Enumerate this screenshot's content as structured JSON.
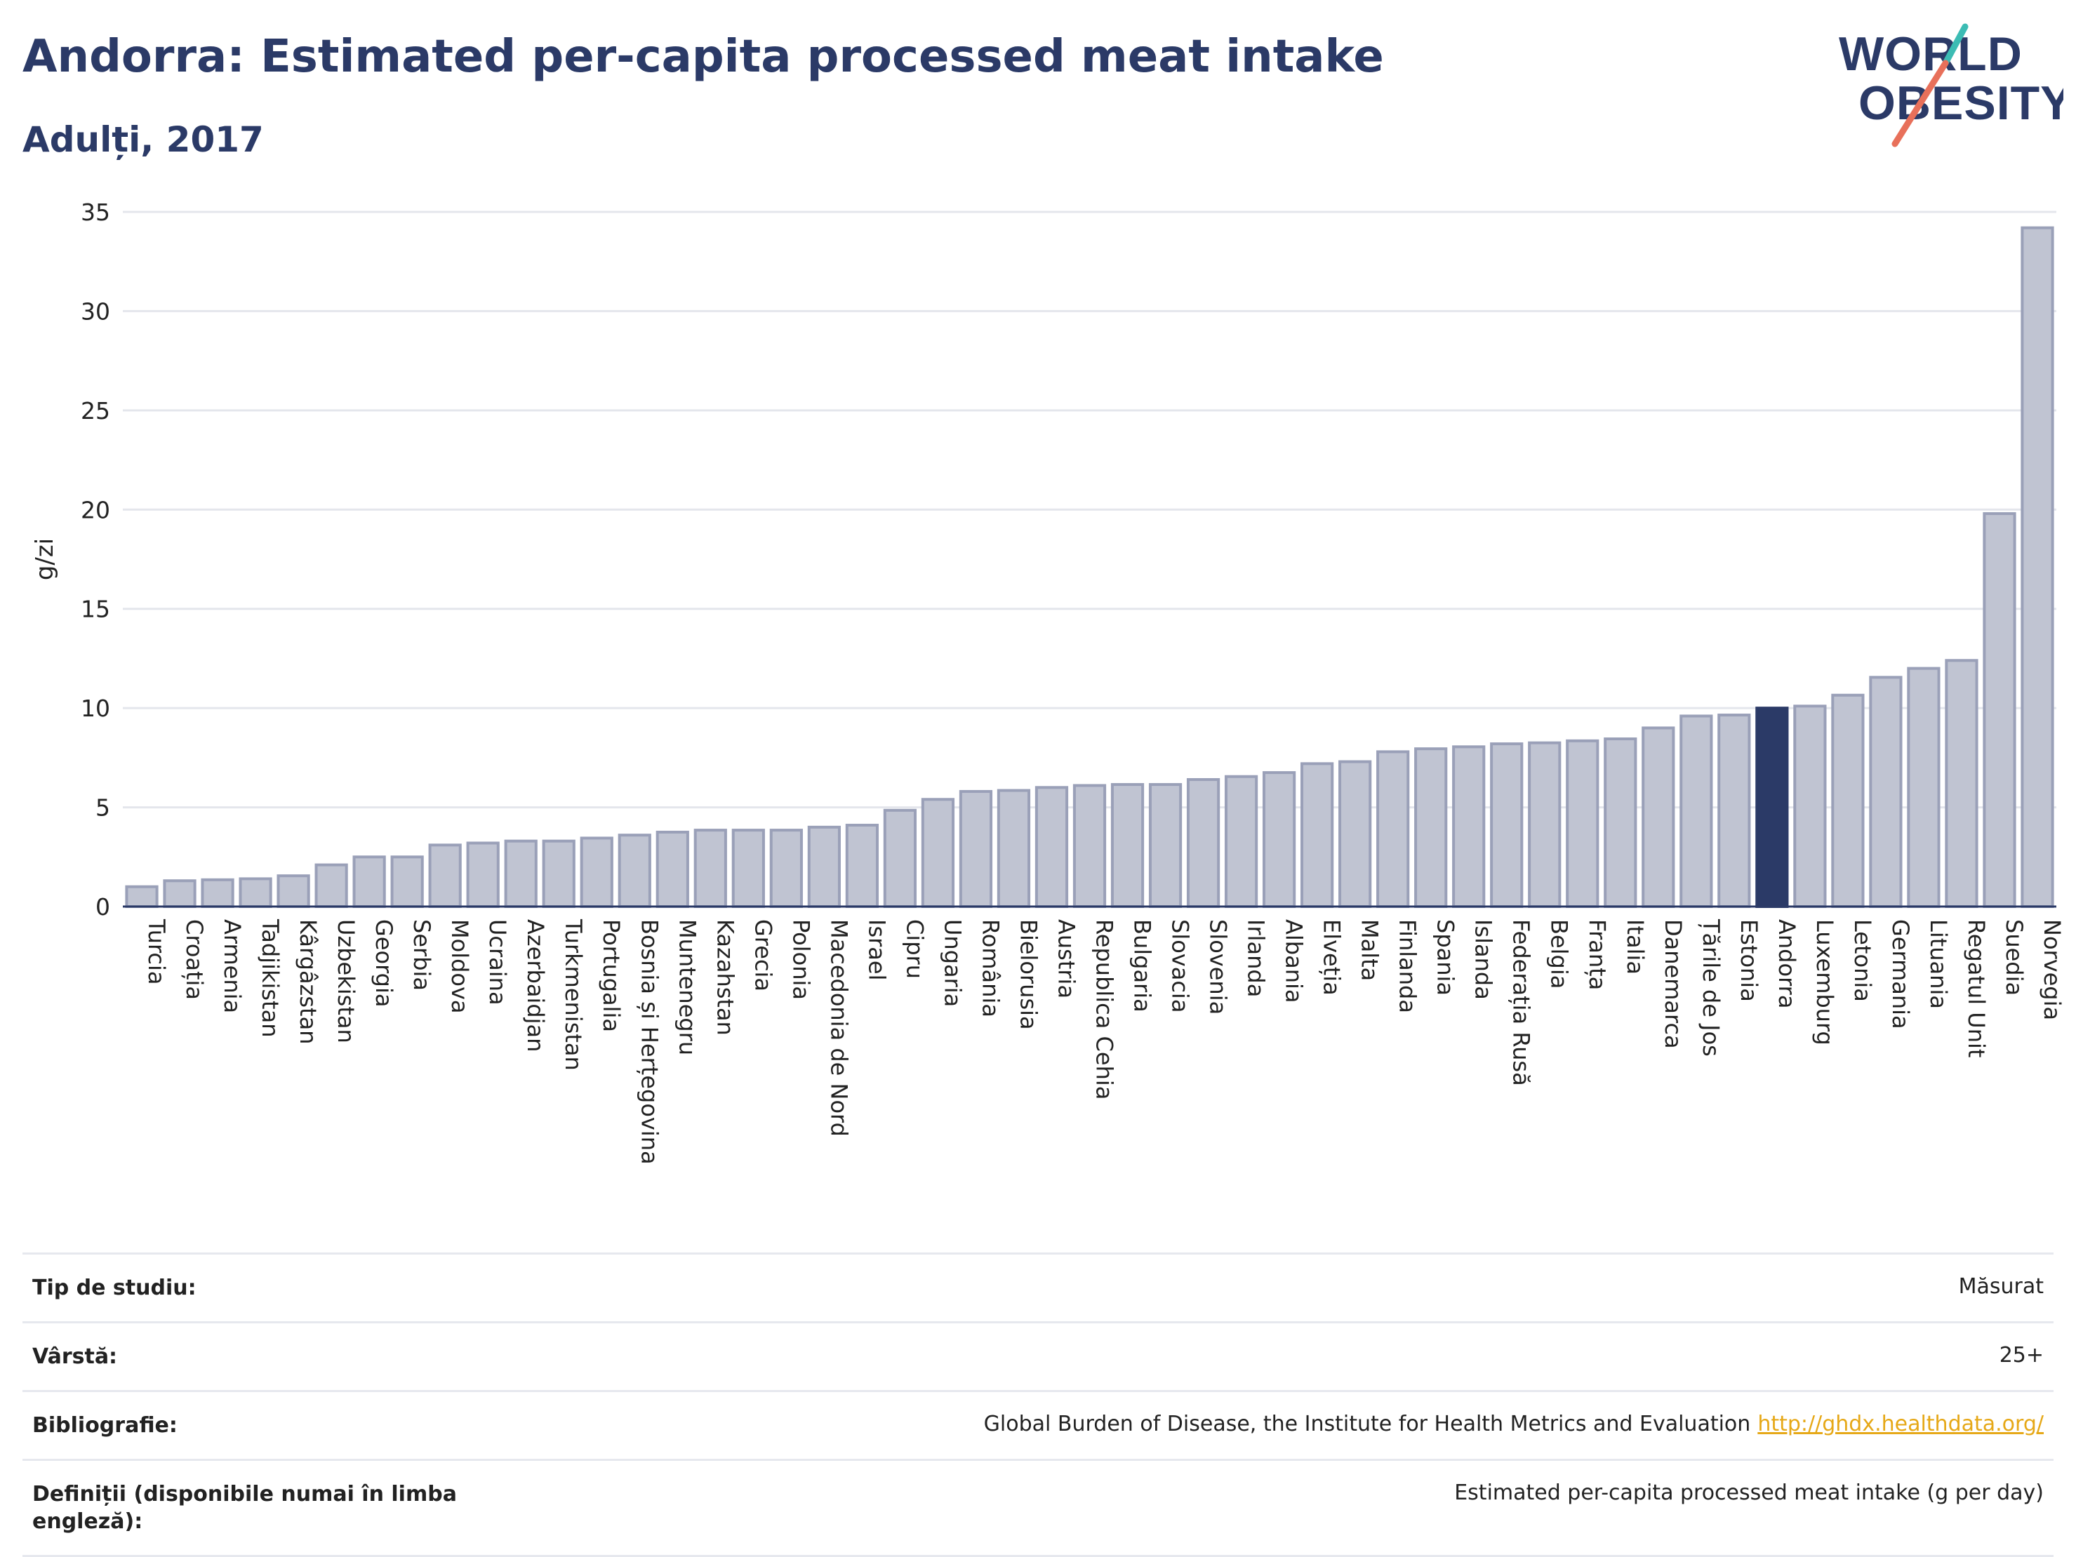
{
  "title": "Andorra: Estimated per-capita processed meat intake",
  "subtitle": "Adulți, 2017",
  "logo": {
    "line1": "WORLD",
    "line2": "OBESITY"
  },
  "colors": {
    "bar": "#c0c4d2",
    "bar_border": "#9aa0b8",
    "highlight": "#2b3a67",
    "title": "#2b3a67",
    "link": "#e6a817",
    "logo_teal": "#3cbcb4",
    "logo_coral": "#e8705a"
  },
  "chart_data": {
    "type": "bar",
    "ylabel": "g/zi",
    "ylim": [
      0,
      35
    ],
    "yticks": [
      0,
      5,
      10,
      15,
      20,
      25,
      30,
      35
    ],
    "highlight": "Andorra",
    "grid": true,
    "categories": [
      "Turcia",
      "Croația",
      "Armenia",
      "Tadjikistan",
      "Kârgâzstan",
      "Uzbekistan",
      "Georgia",
      "Serbia",
      "Moldova",
      "Ucraina",
      "Azerbaidjan",
      "Turkmenistan",
      "Portugalia",
      "Bosnia și Herțegovina",
      "Muntenegru",
      "Kazahstan",
      "Grecia",
      "Polonia",
      "Macedonia de Nord",
      "Israel",
      "Cipru",
      "Ungaria",
      "România",
      "Bielorusia",
      "Austria",
      "Republica Cehia",
      "Bulgaria",
      "Slovacia",
      "Slovenia",
      "Irlanda",
      "Albania",
      "Elveția",
      "Malta",
      "Finlanda",
      "Spania",
      "Islanda",
      "Federația Rusă",
      "Belgia",
      "Franța",
      "Italia",
      "Danemarca",
      "Țările de Jos",
      "Estonia",
      "Andorra",
      "Luxemburg",
      "Letonia",
      "Germania",
      "Lituania",
      "Regatul Unit",
      "Suedia",
      "Norvegia"
    ],
    "values": [
      1.0,
      1.3,
      1.35,
      1.4,
      1.55,
      2.1,
      2.5,
      2.5,
      3.1,
      3.2,
      3.3,
      3.3,
      3.45,
      3.6,
      3.75,
      3.85,
      3.85,
      3.85,
      4.0,
      4.1,
      4.85,
      5.4,
      5.8,
      5.85,
      6.0,
      6.1,
      6.15,
      6.15,
      6.4,
      6.55,
      6.75,
      7.2,
      7.3,
      7.8,
      7.95,
      8.05,
      8.2,
      8.25,
      8.35,
      8.45,
      9.0,
      9.6,
      9.65,
      10.0,
      10.1,
      10.65,
      11.55,
      12.0,
      12.4,
      19.8,
      34.2
    ]
  },
  "info": [
    {
      "label": "Tip de studiu:",
      "value": "Măsurat"
    },
    {
      "label": "Vârstă:",
      "value": "25+"
    },
    {
      "label": "Bibliografie:",
      "value": "Global Burden of Disease, the Institute for Health Metrics and Evaluation",
      "link": "http://ghdx.healthdata.org/"
    },
    {
      "label": "Definiții (disponibile numai în limba engleză):",
      "value": "Estimated per-capita processed meat intake (g per day)"
    }
  ]
}
